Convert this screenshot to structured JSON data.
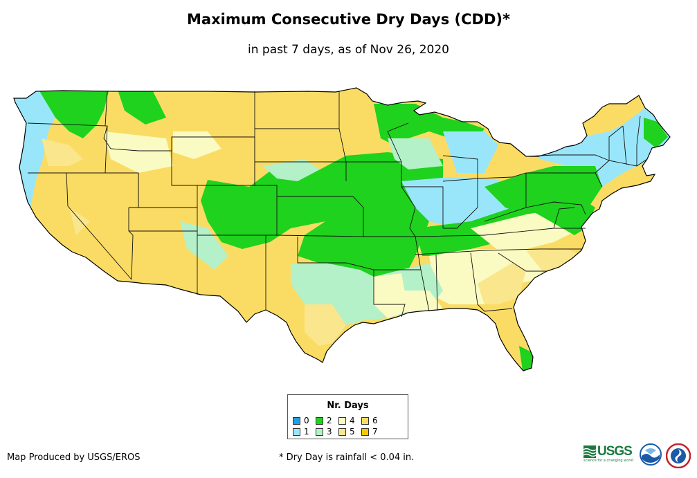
{
  "title": "Maximum Consecutive Dry Days (CDD)*",
  "subtitle": "in past 7 days, as of Nov 26, 2020",
  "legend": {
    "title": "Nr. Days",
    "items": [
      {
        "label": "0",
        "color": "#1ca0e6"
      },
      {
        "label": "1",
        "color": "#99e6fa"
      },
      {
        "label": "2",
        "color": "#1ed21e"
      },
      {
        "label": "3",
        "color": "#b4f0c8"
      },
      {
        "label": "4",
        "color": "#fafac3"
      },
      {
        "label": "5",
        "color": "#fae68c"
      },
      {
        "label": "6",
        "color": "#fadc64"
      },
      {
        "label": "7",
        "color": "#fac800"
      }
    ]
  },
  "credit": "Map Produced by USGS/EROS",
  "footnote": "* Dry Day is rainfall < 0.04 in.",
  "logos": {
    "usgs": {
      "text": "USGS",
      "tagline": "science for a changing world",
      "color": "#1a7a3e"
    },
    "noaa": {
      "color": "#1c5aa6"
    },
    "nws": {
      "color": "#c0232b"
    }
  }
}
